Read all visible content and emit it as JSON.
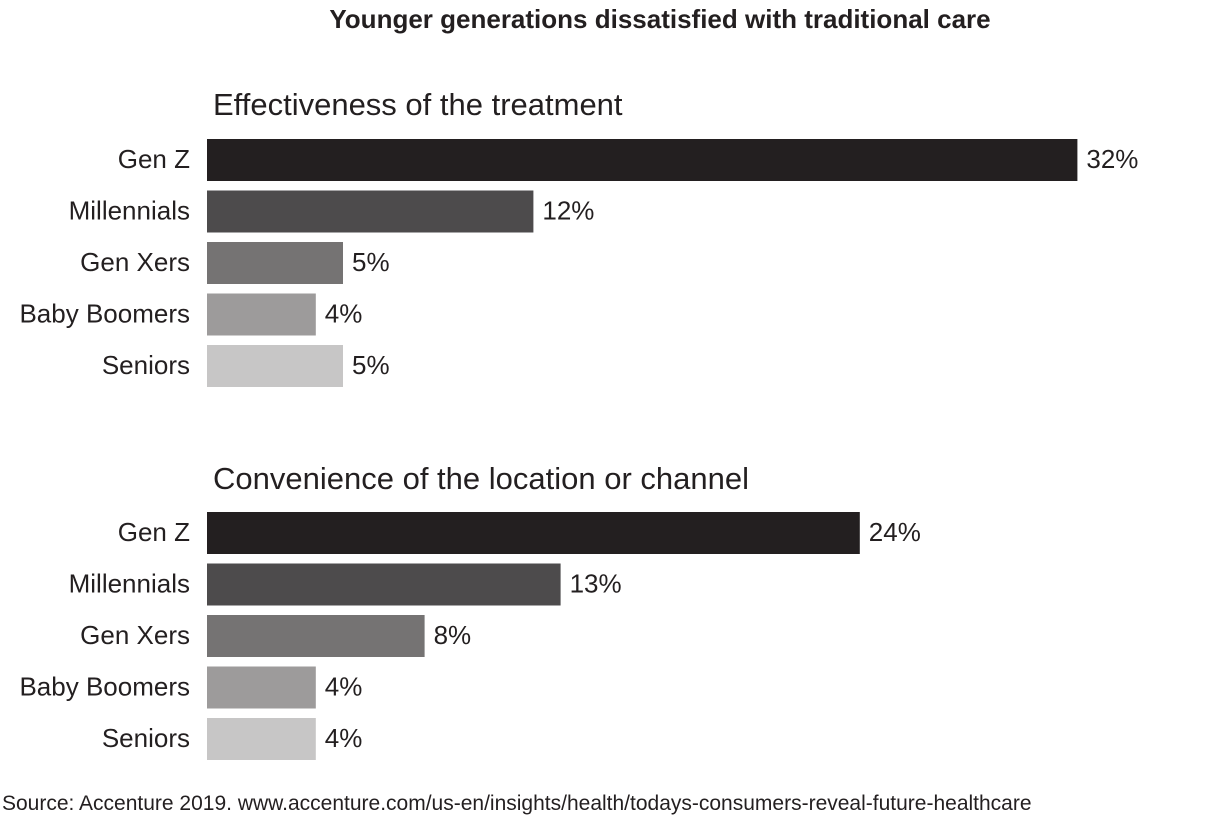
{
  "title": "Younger generations dissatisfied with traditional care",
  "source": "Source: Accenture 2019. www.accenture.com/us-en/insights/health/todays-consumers-reveal-future-healthcare",
  "colors": [
    "#231f20",
    "#4d4b4c",
    "#757373",
    "#9d9b9b",
    "#c7c6c6"
  ],
  "chart_data": [
    {
      "type": "bar",
      "orientation": "horizontal",
      "title": "Effectiveness of the treatment",
      "categories": [
        "Gen Z",
        "Millennials",
        "Gen Xers",
        "Baby Boomers",
        "Seniors"
      ],
      "values": [
        32,
        12,
        5,
        4,
        5
      ],
      "value_labels": [
        "32%",
        "12%",
        "5%",
        "4%",
        "5%"
      ],
      "unit": "%"
    },
    {
      "type": "bar",
      "orientation": "horizontal",
      "title": "Convenience of the location or channel",
      "categories": [
        "Gen Z",
        "Millennials",
        "Gen Xers",
        "Baby Boomers",
        "Seniors"
      ],
      "values": [
        24,
        13,
        8,
        4,
        4
      ],
      "value_labels": [
        "24%",
        "13%",
        "8%",
        "4%",
        "4%"
      ],
      "unit": "%"
    }
  ]
}
